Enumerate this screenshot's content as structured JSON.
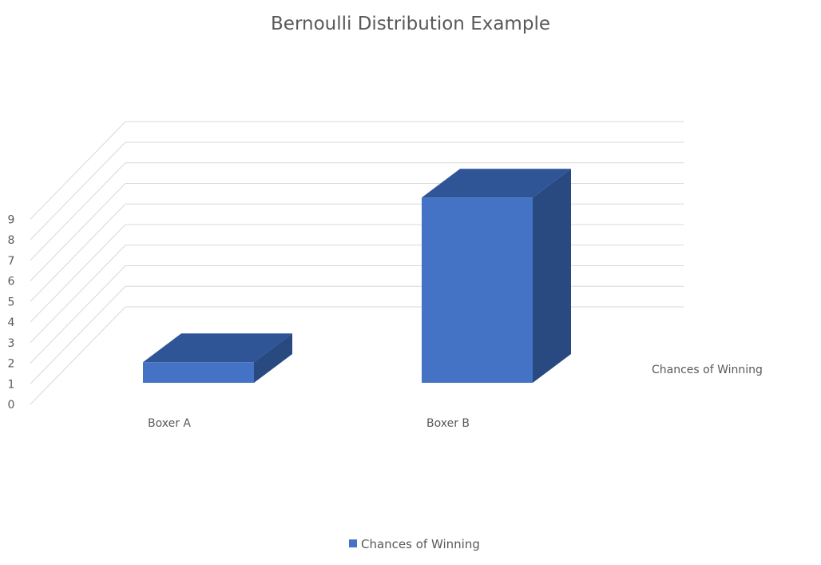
{
  "chart_data": {
    "type": "bar",
    "title": "Bernoulli Distribution Example",
    "categories": [
      "Boxer A",
      "Boxer B"
    ],
    "series": [
      {
        "name": "Chances of Winning",
        "values": [
          1,
          9
        ]
      }
    ],
    "ylim": [
      0,
      9
    ],
    "yticks": [
      "0",
      "1",
      "2",
      "3",
      "4",
      "5",
      "6",
      "7",
      "8",
      "9"
    ],
    "depth_label": "Chances of Winning",
    "legend": {
      "entries": [
        "Chances of Winning"
      ],
      "position": "bottom"
    },
    "grid": true,
    "style": "3d-column"
  },
  "colors": {
    "bar_front": "#4472C4",
    "bar_top": "#2F5597",
    "bar_side": "#284A80",
    "grid": "#d9d9d9",
    "text": "#595959"
  }
}
